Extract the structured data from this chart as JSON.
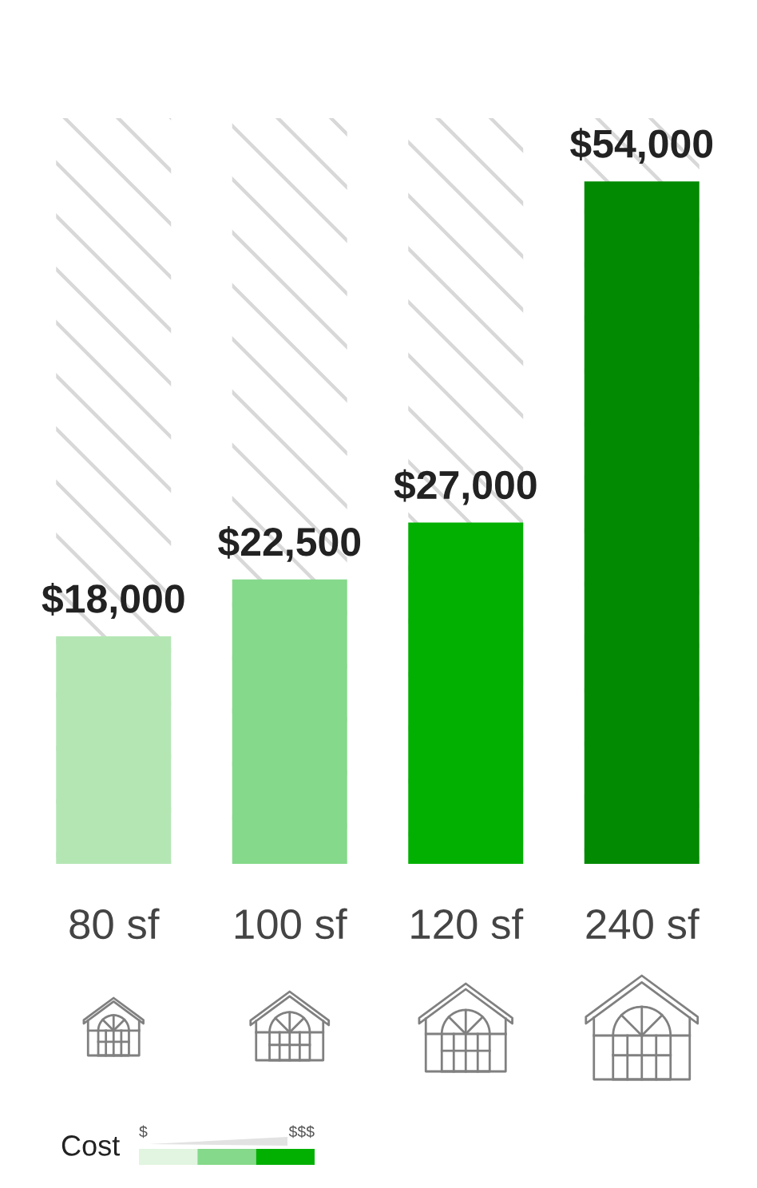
{
  "chart_data": {
    "type": "bar",
    "categories": [
      "80 sf",
      "100 sf",
      "120 sf",
      "240 sf"
    ],
    "values": [
      18000,
      22500,
      27000,
      54000
    ],
    "colors": [
      "#b4e6b4",
      "#85d98a",
      "#02b002",
      "#028a02"
    ],
    "value_labels": [
      "$18,000",
      "$22,500",
      "$27,000",
      "$54,000"
    ],
    "ylim": [
      0,
      59000
    ],
    "tick_labels": "x",
    "bands": [
      {
        "axis": "x",
        "from": "80 sf",
        "to": "80 sf",
        "color": "#d8d8d8"
      },
      {
        "axis": "x",
        "from": "100 sf",
        "to": "100 sf",
        "color": "#d8d8d8"
      },
      {
        "axis": "x",
        "from": "120 sf",
        "to": "120 sf",
        "color": "#d8d8d8"
      },
      {
        "axis": "x",
        "from": "240 sf",
        "to": "240 sf",
        "color": "#d8d8d8"
      }
    ],
    "annotations": [
      "Cost",
      "$",
      "$$$"
    ]
  }
}
